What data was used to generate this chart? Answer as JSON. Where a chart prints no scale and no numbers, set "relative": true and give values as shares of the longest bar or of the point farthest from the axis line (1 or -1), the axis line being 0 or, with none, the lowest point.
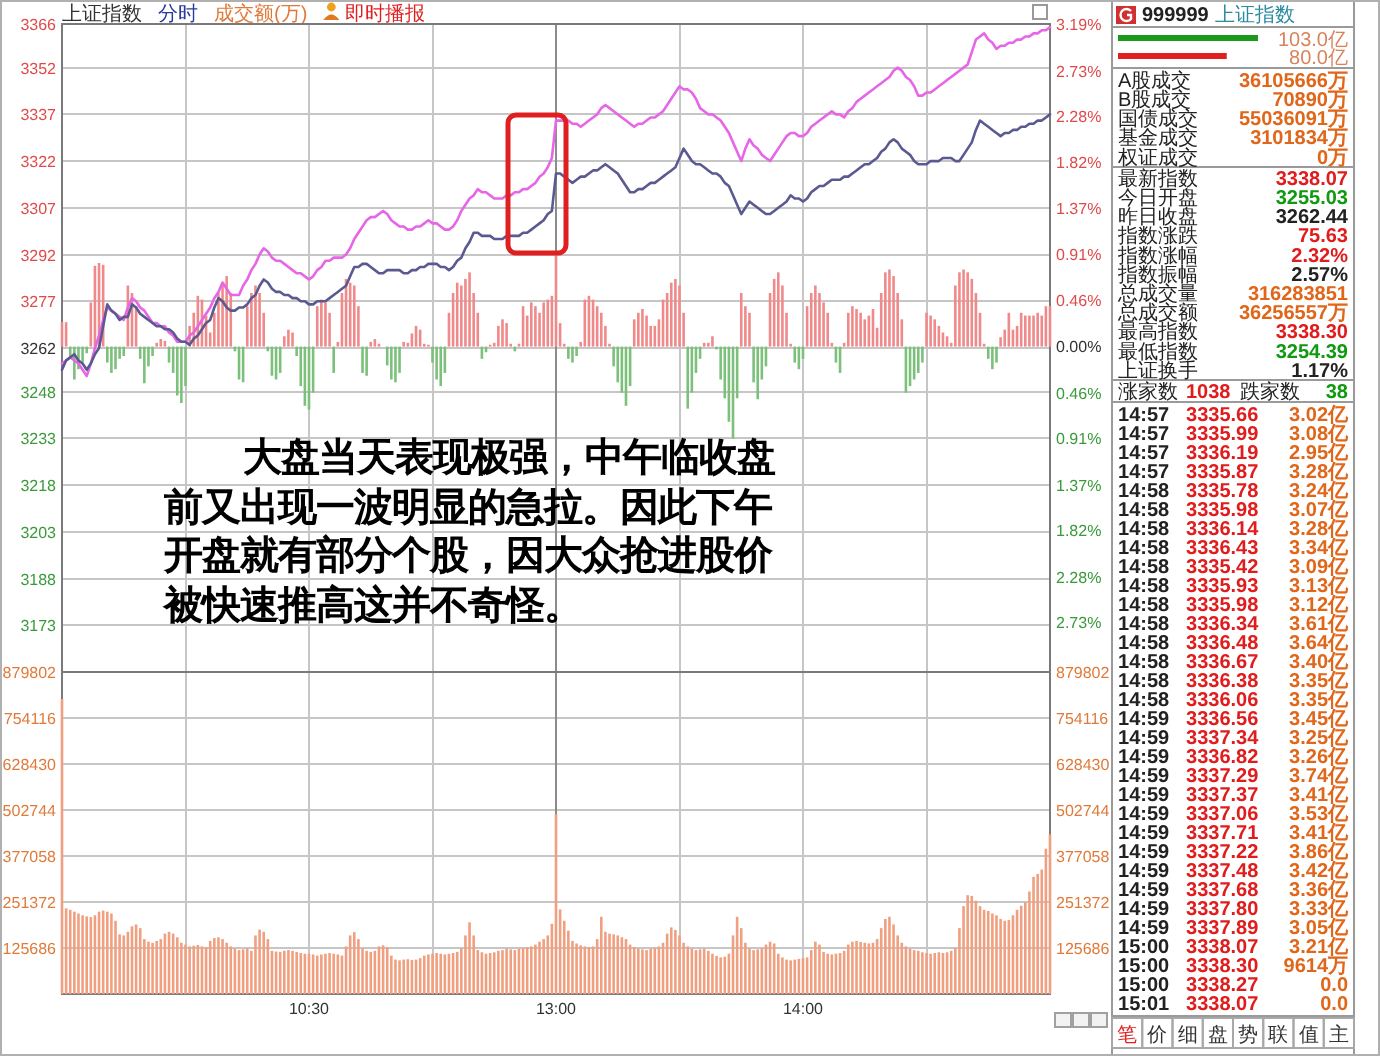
{
  "chart_data": [
    {
      "type": "other",
      "categories": [
        "上证指数",
        "分时",
        "成交额(万)",
        "即时播报"
      ],
      "colors": [
        "#333333",
        "#2a3a9a",
        "#e07a3a",
        "#e02020"
      ]
    },
    {
      "type": "line",
      "categories": [
        null,
        null,
        null,
        null,
        null,
        null,
        null,
        null,
        null,
        null,
        null,
        null,
        null,
        null,
        null,
        null,
        null,
        null,
        null,
        null,
        null,
        null,
        null,
        null,
        null,
        null,
        null,
        null,
        null,
        null,
        null,
        null,
        null,
        null,
        null,
        null,
        null,
        null,
        null,
        null,
        null,
        null,
        null,
        null,
        null,
        null,
        null,
        null,
        null,
        null,
        null,
        null,
        null,
        null,
        null,
        null,
        null,
        null,
        null,
        null,
        null,
        null,
        null,
        null,
        null,
        null,
        null,
        null,
        null,
        null,
        null,
        null,
        null,
        null,
        null,
        null,
        null,
        null,
        null,
        null,
        null,
        null,
        null,
        null,
        null,
        null,
        null,
        null,
        null,
        null,
        null,
        null,
        null,
        null,
        null,
        null,
        null,
        null,
        null,
        null,
        null,
        null,
        null,
        null,
        null,
        null,
        null,
        null,
        null,
        null,
        null,
        null,
        null,
        null,
        null,
        null,
        null,
        null,
        null,
        null,
        null,
        null,
        null,
        null,
        null,
        null,
        null,
        null,
        null,
        null,
        null,
        null,
        null,
        null,
        null,
        null,
        null,
        null,
        null,
        null,
        null,
        null,
        null,
        null,
        null,
        null,
        null,
        null,
        null,
        null,
        null,
        null,
        null,
        null,
        null,
        null,
        null,
        null,
        null,
        null,
        null,
        null,
        null,
        null,
        null,
        null,
        null,
        null,
        null,
        null,
        null,
        null,
        null,
        null,
        null,
        null,
        null,
        null,
        null,
        null,
        null,
        null,
        null,
        null,
        null,
        null,
        null,
        null,
        null,
        null,
        null,
        null,
        null,
        null,
        null,
        null,
        null,
        null,
        null,
        null,
        null,
        null,
        null,
        null,
        null,
        null,
        null,
        null,
        null,
        null,
        null,
        null,
        null,
        null,
        null,
        null,
        null,
        null,
        null,
        null,
        null,
        null,
        null,
        null,
        null,
        null,
        null,
        null,
        null,
        null,
        null,
        null,
        null,
        null,
        null,
        null,
        null,
        null,
        null,
        null,
        null
      ],
      "ylim": [
        3158,
        3366
      ],
      "yticks": [
        3366,
        3352,
        3337,
        3322,
        3307,
        3292,
        3277,
        3262,
        3248,
        3233,
        3218,
        3203,
        3188,
        3173
      ],
      "y2lim": [
        -3.22,
        3.19
      ],
      "y2ticks": [
        {
          "value": 3.19,
          "label": "3.19%"
        },
        {
          "value": 2.73,
          "label": "2.73%"
        },
        {
          "value": 2.28,
          "label": "2.28%"
        },
        {
          "value": 1.82,
          "label": "1.82%"
        },
        {
          "value": 1.37,
          "label": "1.37%"
        },
        {
          "value": 0.91,
          "label": "0.91%"
        },
        {
          "value": 0.46,
          "label": "0.46%"
        },
        {
          "value": 0,
          "label": "0.00%"
        },
        {
          "value": -0.46,
          "label": "0.46%"
        },
        {
          "value": -0.91,
          "label": "0.91%"
        },
        {
          "value": -1.37,
          "label": "1.37%"
        },
        {
          "value": -1.82,
          "label": "1.82%"
        },
        {
          "value": -2.28,
          "label": "2.28%"
        },
        {
          "value": -2.73,
          "label": "2.73%"
        }
      ],
      "grid": true,
      "annotations": [
        "大盘当天表现极强，中午临收盘前又出现一波明显的急拉。因此下午开盘就有部分个股，因大众抢进股价被快速推高这并不奇怪。"
      ],
      "series": [
        {
          "color": "#e766e7",
          "values": [
            3257,
            3258,
            3259,
            3258,
            3257,
            3255,
            3253,
            3257,
            3262,
            3266,
            3271,
            3275,
            3274,
            3273,
            3272,
            3271,
            3275,
            3278,
            3277,
            3275,
            3274,
            3272,
            3270,
            3270,
            3269,
            3269,
            3267,
            3266,
            3264,
            3264,
            3264,
            3266,
            3267,
            3269,
            3271,
            3273,
            3275,
            3278,
            3280,
            3283,
            3281,
            3279,
            3279,
            3279,
            3282,
            3284,
            3287,
            3289,
            3292,
            3294,
            3293,
            3291,
            3290,
            3290,
            3289,
            3288,
            3287,
            3286,
            3286,
            3285,
            3284,
            3285,
            3287,
            3288,
            3290,
            3290,
            3291,
            3291,
            3291,
            3292,
            3294,
            3297,
            3299,
            3301,
            3303,
            3304,
            3304,
            3305,
            3306,
            3305,
            3303,
            3302,
            3301,
            3301,
            3300,
            3300,
            3301,
            3301,
            3302,
            3303,
            3302,
            3302,
            3301,
            3300,
            3300,
            3301,
            3303,
            3306,
            3308,
            3310,
            3311,
            3313,
            3312,
            3312,
            3311,
            3310,
            3310,
            3310,
            3311,
            3311,
            3312,
            3312,
            3313,
            3313,
            3314,
            3315,
            3317,
            3318,
            3320,
            3323,
            3335,
            3335,
            3335,
            3335,
            3334,
            3334,
            3333,
            3334,
            3335,
            3336,
            3337,
            3339,
            3340,
            3339,
            3338,
            3337,
            3336,
            3335,
            3334,
            3333,
            3334,
            3334,
            3335,
            3336,
            3336,
            3337,
            3338,
            3340,
            3342,
            3344,
            3346,
            3345,
            3345,
            3344,
            3342,
            3339,
            3338,
            3337,
            3337,
            3336,
            3335,
            3333,
            3331,
            3328,
            3325,
            3322,
            3326,
            3329,
            3327,
            3326,
            3324,
            3323,
            3322,
            3324,
            3326,
            3328,
            3330,
            3331,
            3331,
            3330,
            3330,
            3331,
            3333,
            3334,
            3335,
            3336,
            3337,
            3338,
            3337,
            3337,
            3336,
            3338,
            3339,
            3341,
            3342,
            3343,
            3344,
            3345,
            3346,
            3347,
            3348,
            3349,
            3351,
            3352,
            3351,
            3349,
            3348,
            3346,
            3343,
            3343,
            3344,
            3344,
            3345,
            3346,
            3347,
            3348,
            3349,
            3350,
            3351,
            3352,
            3353,
            3357,
            3361,
            3362,
            3363,
            3361,
            3360,
            3358,
            3359,
            3359,
            3360,
            3360,
            3361,
            3361,
            3362,
            3362,
            3363,
            3363,
            3364,
            3364,
            3365
          ]
        },
        {
          "color": "#5a5a90",
          "values": [
            3255,
            3258,
            3259,
            3260,
            3258,
            3257,
            3255,
            3257,
            3260,
            3262,
            3269,
            3276,
            3274,
            3273,
            3271,
            3272,
            3272,
            3276,
            3275,
            3273,
            3272,
            3271,
            3270,
            3269,
            3269,
            3268,
            3268,
            3267,
            3265,
            3264,
            3264,
            3263,
            3265,
            3266,
            3268,
            3270,
            3271,
            3275,
            3278,
            3277,
            3275,
            3274,
            3274,
            3275,
            3275,
            3276,
            3278,
            3279,
            3282,
            3284,
            3283,
            3281,
            3280,
            3280,
            3279,
            3279,
            3278,
            3278,
            3277,
            3277,
            3276,
            3276,
            3277,
            3277,
            3277,
            3278,
            3279,
            3280,
            3281,
            3282,
            3285,
            3288,
            3288,
            3289,
            3289,
            3288,
            3287,
            3286,
            3286,
            3287,
            3287,
            3287,
            3287,
            3286,
            3286,
            3287,
            3287,
            3288,
            3288,
            3289,
            3289,
            3289,
            3288,
            3288,
            3287,
            3288,
            3290,
            3291,
            3294,
            3296,
            3299,
            3299,
            3298,
            3298,
            3298,
            3297,
            3297,
            3297,
            3298,
            3298,
            3298,
            3298,
            3299,
            3299,
            3300,
            3301,
            3302,
            3303,
            3305,
            3306,
            3318,
            3318,
            3317,
            3316,
            3315,
            3316,
            3317,
            3317,
            3318,
            3319,
            3319,
            3320,
            3321,
            3320,
            3319,
            3318,
            3316,
            3314,
            3312,
            3312,
            3313,
            3313,
            3314,
            3315,
            3315,
            3316,
            3317,
            3318,
            3319,
            3320,
            3323,
            3326,
            3324,
            3322,
            3321,
            3321,
            3320,
            3319,
            3318,
            3318,
            3317,
            3315,
            3314,
            3311,
            3308,
            3305,
            3307,
            3309,
            3308,
            3307,
            3306,
            3305,
            3305,
            3306,
            3307,
            3308,
            3309,
            3311,
            3310,
            3310,
            3309,
            3310,
            3312,
            3313,
            3314,
            3314,
            3315,
            3316,
            3316,
            3316,
            3317,
            3317,
            3318,
            3319,
            3320,
            3321,
            3321,
            3322,
            3323,
            3325,
            3326,
            3328,
            3329,
            3328,
            3326,
            3325,
            3324,
            3322,
            3321,
            3321,
            3321,
            3322,
            3322,
            3322,
            3323,
            3323,
            3323,
            3322,
            3322,
            3324,
            3326,
            3328,
            3332,
            3335,
            3334,
            3333,
            3332,
            3331,
            3330,
            3331,
            3331,
            3332,
            3332,
            3333,
            3333,
            3334,
            3334,
            3335,
            3335,
            3336,
            3337
          ]
        }
      ]
    },
    {
      "type": "bar",
      "relative": true,
      "categories": [
        null,
        null,
        null,
        null,
        null,
        null,
        null,
        null,
        null,
        null,
        null,
        null,
        null,
        null,
        null,
        null,
        null,
        null,
        null,
        null,
        null,
        null,
        null,
        null,
        null,
        null,
        null,
        null,
        null,
        null,
        null,
        null,
        null,
        null,
        null,
        null,
        null,
        null,
        null,
        null,
        null,
        null,
        null,
        null,
        null,
        null,
        null,
        null,
        null,
        null,
        null,
        null,
        null,
        null,
        null,
        null,
        null,
        null,
        null,
        null,
        null,
        null,
        null,
        null,
        null,
        null,
        null,
        null,
        null,
        null,
        null,
        null,
        null,
        null,
        null,
        null,
        null,
        null,
        null,
        null,
        null,
        null,
        null,
        null,
        null,
        null,
        null,
        null,
        null,
        null,
        null,
        null,
        null,
        null,
        null,
        null,
        null,
        null,
        null,
        null,
        null,
        null,
        null,
        null,
        null,
        null,
        null,
        null,
        null,
        null,
        null,
        null,
        null,
        null,
        null,
        null,
        null,
        null,
        null,
        null,
        null,
        null,
        null,
        null,
        null,
        null,
        null,
        null,
        null,
        null,
        null,
        null,
        null,
        null,
        null,
        null,
        null,
        null,
        null,
        null,
        null,
        null,
        null,
        null,
        null,
        null,
        null,
        null,
        null,
        null,
        null,
        null,
        null,
        null,
        null,
        null,
        null,
        null,
        null,
        null,
        null,
        null,
        null,
        null,
        null,
        null,
        null,
        null,
        null,
        null,
        null,
        null,
        null,
        null,
        null,
        null,
        null,
        null,
        null,
        null,
        null,
        null,
        null,
        null,
        null,
        null,
        null,
        null,
        null,
        null,
        null,
        null,
        null,
        null,
        null,
        null,
        null,
        null,
        null,
        null,
        null,
        null,
        null,
        null,
        null,
        null,
        null,
        null,
        null,
        null,
        null,
        null,
        null,
        null,
        null,
        null,
        null,
        null,
        null,
        null,
        null,
        null,
        null,
        null,
        null,
        null,
        null,
        null,
        null,
        null,
        null,
        null,
        null,
        null,
        null,
        null,
        null,
        null,
        null,
        null,
        null
      ],
      "series": [
        {
          "color": "#f08a8a",
          "values": [
            0.26,
            0.26,
            null,
            null,
            null,
            null,
            null,
            0.47,
            0.86,
            0.89,
            0.87,
            null,
            null,
            null,
            null,
            null,
            0.65,
            0.57,
            0.43,
            null,
            null,
            null,
            null,
            0.04,
            0.08,
            0.06,
            null,
            null,
            null,
            null,
            null,
            0.22,
            0.36,
            0.54,
            0.5,
            0.33,
            0.15,
            0.36,
            0.57,
            0.68,
            0.75,
            0.57,
            null,
            null,
            null,
            0.43,
            0.57,
            0.65,
            0.57,
            0.36,
            null,
            null,
            null,
            null,
            0.11,
            0.18,
            0.15,
            null,
            null,
            null,
            null,
            null,
            0.43,
            0.5,
            0.47,
            0.36,
            null,
            0.05,
            0.57,
            0.72,
            0.68,
            0.65,
            0.43,
            null,
            null,
            0.05,
            0.08,
            0.03,
            null,
            null,
            null,
            null,
            null,
            0.05,
            0.04,
            0.14,
            0.22,
            0.18,
            0.03,
            0.02,
            null,
            null,
            null,
            null,
            0.36,
            0.57,
            0.68,
            0.65,
            0.72,
            0.79,
            0.57,
            0.36,
            null,
            null,
            0.02,
            0.04,
            0.22,
            0.29,
            0.25,
            0.03,
            null,
            0.03,
            0.43,
            0.33,
            0.47,
            0.43,
            0.36,
            0.47,
            0.5,
            0.54,
            1,
            0.25,
            0.03,
            null,
            null,
            null,
            0.05,
            0.5,
            0.54,
            0.5,
            0.43,
            0.36,
            0.22,
            0.03,
            null,
            null,
            null,
            null,
            null,
            0.29,
            0.36,
            0.4,
            0.33,
            0.22,
            0.22,
            0.29,
            0.5,
            0.57,
            0.68,
            0.72,
            0.65,
            0.36,
            null,
            null,
            null,
            null,
            0.04,
            0.04,
            0.11,
            null,
            null,
            null,
            null,
            null,
            null,
            0.57,
            0.43,
            0.36,
            null,
            null,
            null,
            null,
            0.57,
            0.72,
            0.79,
            0.65,
            0.36,
            0.03,
            null,
            null,
            null,
            0.43,
            0.57,
            0.65,
            0.57,
            0.47,
            0.36,
            0.04,
            null,
            null,
            0.04,
            0.36,
            0.43,
            0.4,
            0.36,
            0.29,
            0.33,
            0.4,
            0.2,
            0.57,
            0.79,
            0.82,
            0.75,
            0.57,
            0.29,
            null,
            null,
            null,
            null,
            null,
            0.36,
            0.33,
            0.29,
            0.22,
            0.15,
            0.11,
            0.04,
            0.65,
            0.79,
            0.82,
            0.79,
            0.72,
            0.57,
            0.36,
            0.03,
            null,
            null,
            null,
            0.1,
            0.18,
            0.36,
            0.18,
            0.22,
            0.36,
            0.33,
            0.33,
            0.33,
            0.36,
            0.33,
            0.43,
            0.43
          ]
        },
        {
          "color": "#7cc07c",
          "values": [
            null,
            null,
            -0.1,
            -0.35,
            -0.24,
            -0.17,
            -0.07,
            null,
            null,
            null,
            null,
            -0.17,
            -0.28,
            -0.24,
            -0.13,
            -0.1,
            null,
            null,
            null,
            -0.13,
            -0.39,
            -0.21,
            -0.1,
            null,
            null,
            null,
            -0.17,
            -0.28,
            -0.52,
            -0.6,
            -0.42,
            null,
            null,
            null,
            null,
            null,
            null,
            null,
            null,
            null,
            null,
            null,
            -0.05,
            -0.35,
            -0.38,
            null,
            null,
            null,
            null,
            null,
            -0.05,
            -0.31,
            -0.35,
            -0.28,
            null,
            null,
            null,
            -0.1,
            -0.42,
            -0.63,
            -0.67,
            -0.49,
            null,
            null,
            null,
            null,
            -0.28,
            null,
            null,
            null,
            null,
            null,
            null,
            -0.28,
            -0.31,
            null,
            null,
            null,
            null,
            -0.2,
            -0.35,
            -0.38,
            -0.28,
            null,
            null,
            null,
            null,
            null,
            null,
            null,
            -0.17,
            -0.35,
            -0.42,
            -0.28,
            null,
            null,
            null,
            null,
            null,
            null,
            null,
            null,
            -0.13,
            -0.06,
            null,
            null,
            null,
            null,
            null,
            null,
            -0.05,
            null,
            null,
            null,
            null,
            null,
            null,
            null,
            null,
            null,
            null,
            null,
            null,
            -0.13,
            -0.17,
            -0.1,
            null,
            null,
            null,
            null,
            null,
            null,
            null,
            null,
            -0.21,
            -0.38,
            -0.49,
            -0.63,
            -0.42,
            null,
            null,
            null,
            null,
            null,
            null,
            null,
            null,
            null,
            null,
            null,
            null,
            null,
            -0.66,
            -0.49,
            -0.28,
            -0.13,
            null,
            null,
            null,
            -0.03,
            -0.35,
            -0.55,
            -0.8,
            -0.98,
            -0.55,
            null,
            null,
            null,
            -0.38,
            -0.56,
            -0.35,
            -0.21,
            null,
            null,
            null,
            null,
            null,
            null,
            -0.17,
            -0.24,
            -0.13,
            null,
            null,
            null,
            null,
            null,
            null,
            null,
            -0.17,
            -0.28,
            null,
            null,
            null,
            null,
            null,
            null,
            null,
            null,
            null,
            null,
            null,
            null,
            null,
            null,
            null,
            -0.49,
            -0.42,
            -0.35,
            -0.28,
            -0.17,
            null,
            null,
            null,
            null,
            null,
            null,
            null,
            null,
            null,
            null,
            null,
            null,
            null,
            null,
            null,
            -0.13,
            -0.24,
            -0.17,
            null,
            null,
            null,
            null,
            null,
            null,
            null,
            null,
            null,
            null,
            null,
            null,
            null
          ]
        }
      ]
    },
    {
      "type": "bar",
      "color": "#f0a080",
      "categories": [
        null,
        null,
        null,
        null,
        null,
        null,
        null,
        null,
        null,
        null,
        null,
        null,
        null,
        null,
        null,
        null,
        null,
        null,
        null,
        null,
        null,
        null,
        null,
        null,
        null,
        null,
        null,
        null,
        null,
        null,
        null,
        null,
        null,
        null,
        null,
        null,
        null,
        null,
        null,
        null,
        null,
        null,
        null,
        null,
        null,
        null,
        null,
        null,
        null,
        null,
        null,
        null,
        null,
        null,
        null,
        null,
        null,
        null,
        null,
        null,
        "10:30",
        null,
        null,
        null,
        null,
        null,
        null,
        null,
        null,
        null,
        null,
        null,
        null,
        null,
        null,
        null,
        null,
        null,
        null,
        null,
        null,
        null,
        null,
        null,
        null,
        null,
        null,
        null,
        null,
        null,
        null,
        null,
        null,
        null,
        null,
        null,
        null,
        null,
        null,
        null,
        null,
        null,
        null,
        null,
        null,
        null,
        null,
        null,
        null,
        null,
        null,
        null,
        null,
        null,
        null,
        null,
        null,
        null,
        null,
        null,
        "13:00",
        null,
        null,
        null,
        null,
        null,
        null,
        null,
        null,
        null,
        null,
        null,
        null,
        null,
        null,
        null,
        null,
        null,
        null,
        null,
        null,
        null,
        null,
        null,
        null,
        null,
        null,
        null,
        null,
        null,
        null,
        null,
        null,
        null,
        null,
        null,
        null,
        null,
        null,
        null,
        null,
        null,
        null,
        null,
        null,
        null,
        null,
        null,
        null,
        null,
        null,
        null,
        null,
        null,
        null,
        null,
        null,
        null,
        null,
        null,
        "14:00",
        null,
        null,
        null,
        null,
        null,
        null,
        null,
        null,
        null,
        null,
        null,
        null,
        null,
        null,
        null,
        null,
        null,
        null,
        null,
        null,
        null,
        null,
        null,
        null,
        null,
        null,
        null,
        null,
        null,
        null,
        null,
        null,
        null,
        null,
        null,
        null,
        null,
        null,
        null,
        null,
        null,
        null,
        null,
        null,
        null,
        null,
        null,
        null,
        null,
        null,
        null,
        null,
        null,
        null,
        null,
        null,
        null,
        null,
        null,
        null
      ],
      "ylim": [
        0,
        879802
      ],
      "yticks": [
        125686,
        251372,
        377058,
        502744,
        628430,
        754116,
        879802
      ],
      "y2lim": [
        0,
        879802
      ],
      "y2ticks": [
        125686,
        251372,
        377058,
        502744,
        628430,
        754116,
        879802
      ],
      "grid": true,
      "values": [
        806000,
        234000,
        230000,
        225000,
        220000,
        215000,
        212000,
        210000,
        215000,
        225000,
        228000,
        225000,
        220000,
        200000,
        163000,
        160000,
        170000,
        185000,
        190000,
        180000,
        150000,
        143000,
        140000,
        145000,
        150000,
        165000,
        170000,
        165000,
        155000,
        140000,
        135000,
        130000,
        132000,
        134000,
        130000,
        128000,
        145000,
        153000,
        155000,
        150000,
        140000,
        130000,
        124000,
        120000,
        122000,
        125000,
        118000,
        160000,
        176000,
        170000,
        150000,
        118000,
        116000,
        115000,
        118000,
        120000,
        118000,
        115000,
        112000,
        110000,
        110000,
        108000,
        105000,
        108000,
        110000,
        112000,
        110000,
        108000,
        105000,
        130000,
        160000,
        169000,
        150000,
        125000,
        118000,
        115000,
        118000,
        130000,
        133000,
        128000,
        105000,
        94000,
        92000,
        94000,
        95000,
        93000,
        94000,
        98000,
        105000,
        108000,
        110000,
        112000,
        110000,
        108000,
        110000,
        112000,
        115000,
        125000,
        160000,
        196000,
        160000,
        120000,
        114000,
        110000,
        112000,
        114000,
        118000,
        120000,
        124000,
        122000,
        120000,
        124000,
        126000,
        128000,
        130000,
        135000,
        143000,
        150000,
        160000,
        192000,
        491000,
        231000,
        200000,
        173000,
        145000,
        138000,
        133000,
        130000,
        128000,
        130000,
        150000,
        211000,
        170000,
        165000,
        163000,
        160000,
        155000,
        150000,
        135000,
        128000,
        124000,
        122000,
        120000,
        124000,
        126000,
        130000,
        140000,
        165000,
        182000,
        175000,
        160000,
        140000,
        130000,
        124000,
        120000,
        122000,
        124000,
        118000,
        110000,
        104000,
        100000,
        102000,
        110000,
        160000,
        211000,
        180000,
        140000,
        124000,
        120000,
        122000,
        125000,
        135000,
        143000,
        138000,
        110000,
        100000,
        94000,
        92000,
        94000,
        96000,
        98000,
        100000,
        120000,
        143000,
        135000,
        115000,
        110000,
        108000,
        110000,
        112000,
        118000,
        135000,
        143000,
        145000,
        142000,
        140000,
        138000,
        140000,
        150000,
        180000,
        205000,
        211000,
        190000,
        160000,
        140000,
        130000,
        124000,
        120000,
        118000,
        114000,
        112000,
        110000,
        112000,
        114000,
        112000,
        114000,
        118000,
        125000,
        180000,
        240000,
        270000,
        268000,
        255000,
        240000,
        230000,
        227000,
        220000,
        215000,
        205000,
        200000,
        202000,
        215000,
        230000,
        241000,
        250000,
        280000,
        320000,
        328000,
        340000,
        397000,
        436000
      ]
    },
    {
      "type": "bar",
      "orientation": "horizontal",
      "title": "999999",
      "subtitle": "上证指数",
      "categories": [
        null,
        null
      ],
      "values": [
        103.0,
        80.0
      ],
      "value_labels": [
        "103.0亿",
        "80.0亿"
      ],
      "colors": [
        "#1a9a1a",
        "#e02020"
      ]
    },
    {
      "type": "other",
      "categories": [
        "A股成交",
        "B股成交",
        "国债成交",
        "基金成交",
        "权证成交"
      ],
      "value_labels": [
        "36105666万",
        "70890万",
        "55036091万",
        "3101834万",
        "0万"
      ],
      "colors": [
        "#e0661a",
        "#e0661a",
        "#e0661a",
        "#e0661a",
        "#e0661a"
      ]
    },
    {
      "type": "other",
      "categories": [
        "最新指数",
        "今日开盘",
        "昨日收盘",
        "指数涨跌",
        "指数涨幅",
        "指数振幅",
        "总成交量",
        "总成交额",
        "最高指数",
        "最低指数",
        "上证换手"
      ],
      "value_labels": [
        "3338.07",
        "3255.03",
        "3262.44",
        "75.63",
        "2.32%",
        "2.57%",
        "316283851",
        "36256557万",
        "3338.30",
        "3254.39",
        "1.17%"
      ],
      "colors": [
        "#e01c1c",
        "#109a10",
        "#222222",
        "#e01c1c",
        "#e01c1c",
        "#222222",
        "#e0661a",
        "#e0661a",
        "#e01c1c",
        "#109a10",
        "#222222"
      ]
    },
    {
      "type": "other",
      "categories": [
        "涨家数",
        "跌家数"
      ],
      "value_labels": [
        "1038",
        "38"
      ],
      "colors": [
        "#e01c1c",
        "#109a10"
      ]
    },
    {
      "type": "other",
      "annotations": [
        "14:57 3335.66 3.02亿",
        "14:57 3335.99 3.08亿",
        "14:57 3336.19 2.95亿",
        "14:57 3335.87 3.28亿",
        "14:58 3335.78 3.24亿",
        "14:58 3335.98 3.07亿",
        "14:58 3336.14 3.28亿",
        "14:58 3336.43 3.34亿",
        "14:58 3335.42 3.09亿",
        "14:58 3335.93 3.13亿",
        "14:58 3335.98 3.12亿",
        "14:58 3336.34 3.61亿",
        "14:58 3336.48 3.64亿",
        "14:58 3336.67 3.40亿",
        "14:58 3336.38 3.35亿",
        "14:58 3336.06 3.35亿",
        "14:59 3336.56 3.45亿",
        "14:59 3337.34 3.25亿",
        "14:59 3336.82 3.26亿",
        "14:59 3337.29 3.74亿",
        "14:59 3337.37 3.41亿",
        "14:59 3337.06 3.53亿",
        "14:59 3337.71 3.41亿",
        "14:59 3337.22 3.86亿",
        "14:59 3337.48 3.42亿",
        "14:59 3337.68 3.36亿",
        "14:59 3337.80 3.33亿",
        "14:59 3337.89 3.05亿",
        "15:00 3338.07 3.21亿",
        "15:00 3338.30 9614万",
        "15:00 3338.27 0.0",
        "15:01 3338.07 0.0"
      ]
    },
    {
      "type": "other",
      "categories": [
        "笔",
        "价",
        "细",
        "盘",
        "势",
        "联",
        "值",
        "主"
      ]
    }
  ]
}
